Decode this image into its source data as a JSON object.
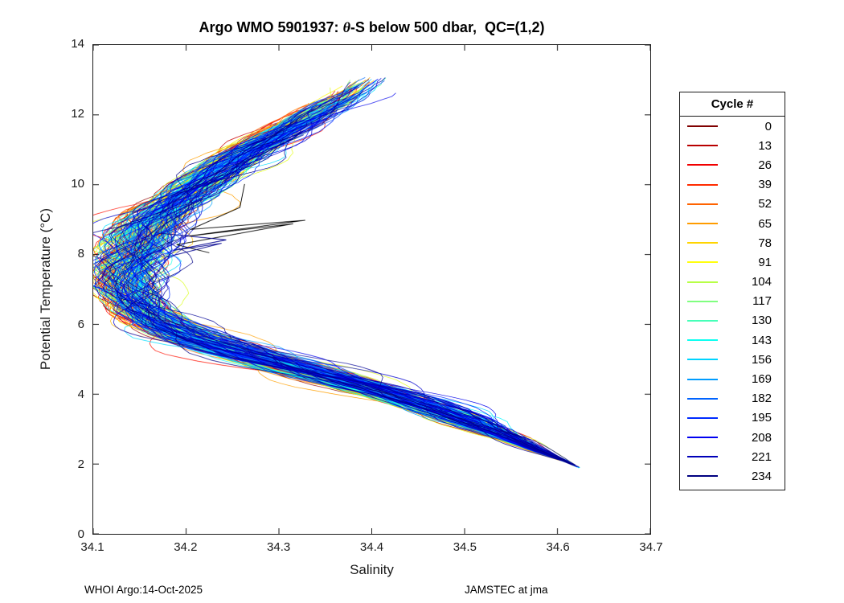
{
  "chart_data": {
    "type": "line",
    "title": "Argo WMO 5901937: θ-S below 500 dbar,  QC=(1,2)",
    "title_parts": {
      "prefix": "Argo WMO 5901937: ",
      "theta": "θ",
      "suffix": "-S below 500 dbar,  QC=(1,2)"
    },
    "xlabel": "Salinity",
    "ylabel": "Potential Temperature (°C)",
    "xlim": [
      34.1,
      34.7
    ],
    "ylim": [
      0,
      14
    ],
    "xticks": {
      "values": [
        34.1,
        34.2,
        34.3,
        34.4,
        34.5,
        34.6,
        34.7
      ],
      "labels": [
        "34.1",
        "34.2",
        "34.3",
        "34.4",
        "34.5",
        "34.6",
        "34.7"
      ]
    },
    "yticks": {
      "values": [
        0,
        2,
        4,
        6,
        8,
        10,
        12,
        14
      ],
      "labels": [
        "0",
        "2",
        "4",
        "6",
        "8",
        "10",
        "12",
        "14"
      ]
    },
    "grid": false,
    "colormap": "jet-reversed",
    "n_profiles": 235,
    "cycle_max": 234,
    "legend": {
      "title": "Cycle #",
      "position": "right-outside",
      "entries": [
        {
          "label": "0",
          "color": "#800000"
        },
        {
          "label": "13",
          "color": "#b80000"
        },
        {
          "label": "26",
          "color": "#f10000"
        },
        {
          "label": "39",
          "color": "#ff2b00"
        },
        {
          "label": "52",
          "color": "#ff6300"
        },
        {
          "label": "65",
          "color": "#ff9c00"
        },
        {
          "label": "78",
          "color": "#ffd400"
        },
        {
          "label": "91",
          "color": "#ffff0e"
        },
        {
          "label": "104",
          "color": "#b8ff47"
        },
        {
          "label": "117",
          "color": "#80ff80"
        },
        {
          "label": "130",
          "color": "#47ffb8"
        },
        {
          "label": "143",
          "color": "#0efff1"
        },
        {
          "label": "156",
          "color": "#00d4ff"
        },
        {
          "label": "169",
          "color": "#009cff"
        },
        {
          "label": "182",
          "color": "#0063ff"
        },
        {
          "label": "195",
          "color": "#002bff"
        },
        {
          "label": "208",
          "color": "#0000f1"
        },
        {
          "label": "221",
          "color": "#0000b8"
        },
        {
          "label": "234",
          "color": "#000080"
        }
      ]
    },
    "backbone_theta_salinity": [
      [
        13.1,
        34.4
      ],
      [
        12.6,
        34.375
      ],
      [
        12.0,
        34.335
      ],
      [
        11.5,
        34.302
      ],
      [
        11.0,
        34.268
      ],
      [
        10.5,
        34.24
      ],
      [
        10.0,
        34.214
      ],
      [
        9.5,
        34.19
      ],
      [
        9.0,
        34.168
      ],
      [
        8.5,
        34.152
      ],
      [
        8.0,
        34.141
      ],
      [
        7.6,
        34.134
      ],
      [
        7.2,
        34.133
      ],
      [
        6.8,
        34.139
      ],
      [
        6.4,
        34.152
      ],
      [
        6.0,
        34.175
      ],
      [
        5.6,
        34.21
      ],
      [
        5.2,
        34.258
      ],
      [
        4.8,
        34.312
      ],
      [
        4.4,
        34.365
      ],
      [
        4.0,
        34.415
      ],
      [
        3.6,
        34.462
      ],
      [
        3.2,
        34.505
      ],
      [
        2.8,
        34.543
      ],
      [
        2.4,
        34.578
      ],
      [
        2.1,
        34.607
      ],
      [
        1.9,
        34.623
      ]
    ],
    "outliers": [
      {
        "color": "#000000",
        "points": [
          [
            34.263,
            10.02
          ],
          [
            34.258,
            9.35
          ],
          [
            34.205,
            8.72
          ],
          [
            34.328,
            8.98
          ],
          [
            34.2,
            8.52
          ],
          [
            34.315,
            8.88
          ],
          [
            34.19,
            8.28
          ],
          [
            34.225,
            8.05
          ]
        ]
      },
      {
        "color": "#00008f",
        "points": [
          [
            34.168,
            8.62
          ],
          [
            34.243,
            8.42
          ],
          [
            34.187,
            8.12
          ],
          [
            34.238,
            8.32
          ],
          [
            34.178,
            7.92
          ]
        ]
      }
    ],
    "footer_left": "WHOI Argo:14-Oct-2025",
    "footer_right": "JAMSTEC at jma"
  }
}
